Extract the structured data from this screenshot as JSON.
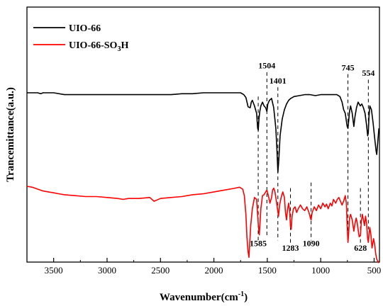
{
  "chart_data": {
    "type": "line",
    "xlabel_main": "Wavenumber(cm",
    "xlabel_sup": "-1",
    "xlabel_end": ")",
    "ylabel": "Trancemittance(a.u.)",
    "x_reversed": true,
    "xlim": [
      3750,
      450
    ],
    "x_ticks": [
      3500,
      3000,
      2500,
      2000,
      1500,
      1000,
      500
    ],
    "y_ticks_shown": false,
    "legend_position": "top-left",
    "series": [
      {
        "name_main": "UIO-66",
        "name_sub": "",
        "name_tail": "",
        "color": "#000000",
        "points": [
          [
            3750,
            0.0
          ],
          [
            3700,
            0.0
          ],
          [
            3650,
            0.0
          ],
          [
            3620,
            0.01
          ],
          [
            3600,
            0.0
          ],
          [
            3500,
            0.0
          ],
          [
            3400,
            0.02
          ],
          [
            3300,
            0.02
          ],
          [
            3200,
            0.02
          ],
          [
            3100,
            0.02
          ],
          [
            3000,
            0.02
          ],
          [
            2900,
            0.02
          ],
          [
            2800,
            0.02
          ],
          [
            2700,
            0.02
          ],
          [
            2600,
            0.02
          ],
          [
            2500,
            0.02
          ],
          [
            2400,
            0.02
          ],
          [
            2300,
            0.01
          ],
          [
            2200,
            0.01
          ],
          [
            2100,
            0.0
          ],
          [
            2000,
            0.0
          ],
          [
            1900,
            0.0
          ],
          [
            1800,
            0.0
          ],
          [
            1750,
            0.0
          ],
          [
            1720,
            0.02
          ],
          [
            1700,
            0.05
          ],
          [
            1680,
            0.15
          ],
          [
            1660,
            0.16
          ],
          [
            1650,
            0.1
          ],
          [
            1640,
            0.08
          ],
          [
            1620,
            0.14
          ],
          [
            1600,
            0.22
          ],
          [
            1590,
            0.38
          ],
          [
            1585,
            0.4
          ],
          [
            1578,
            0.28
          ],
          [
            1570,
            0.2
          ],
          [
            1560,
            0.14
          ],
          [
            1545,
            0.1
          ],
          [
            1530,
            0.14
          ],
          [
            1515,
            0.16
          ],
          [
            1504,
            0.2
          ],
          [
            1495,
            0.12
          ],
          [
            1480,
            0.08
          ],
          [
            1460,
            0.06
          ],
          [
            1440,
            0.16
          ],
          [
            1420,
            0.38
          ],
          [
            1410,
            0.6
          ],
          [
            1401,
            0.85
          ],
          [
            1392,
            0.72
          ],
          [
            1380,
            0.46
          ],
          [
            1360,
            0.28
          ],
          [
            1340,
            0.18
          ],
          [
            1320,
            0.12
          ],
          [
            1300,
            0.08
          ],
          [
            1280,
            0.06
          ],
          [
            1250,
            0.04
          ],
          [
            1200,
            0.03
          ],
          [
            1150,
            0.02
          ],
          [
            1100,
            0.02
          ],
          [
            1050,
            0.03
          ],
          [
            1000,
            0.02
          ],
          [
            950,
            0.02
          ],
          [
            900,
            0.02
          ],
          [
            850,
            0.02
          ],
          [
            820,
            0.04
          ],
          [
            800,
            0.1
          ],
          [
            785,
            0.18
          ],
          [
            770,
            0.22
          ],
          [
            760,
            0.3
          ],
          [
            752,
            0.36
          ],
          [
            745,
            0.38
          ],
          [
            738,
            0.3
          ],
          [
            730,
            0.2
          ],
          [
            720,
            0.14
          ],
          [
            705,
            0.22
          ],
          [
            690,
            0.36
          ],
          [
            680,
            0.26
          ],
          [
            665,
            0.16
          ],
          [
            650,
            0.1
          ],
          [
            630,
            0.14
          ],
          [
            615,
            0.12
          ],
          [
            600,
            0.16
          ],
          [
            585,
            0.22
          ],
          [
            570,
            0.35
          ],
          [
            560,
            0.46
          ],
          [
            554,
            0.42
          ],
          [
            548,
            0.26
          ],
          [
            540,
            0.14
          ],
          [
            525,
            0.18
          ],
          [
            510,
            0.32
          ],
          [
            495,
            0.48
          ],
          [
            482,
            0.62
          ],
          [
            475,
            0.66
          ],
          [
            465,
            0.52
          ],
          [
            455,
            0.38
          ]
        ]
      },
      {
        "name_main": "UIO-66-SO",
        "name_sub": "3",
        "name_tail": "H",
        "color": "#ff0000",
        "points": [
          [
            3750,
            1.0
          ],
          [
            3700,
            1.01
          ],
          [
            3650,
            1.03
          ],
          [
            3600,
            1.05
          ],
          [
            3550,
            1.06
          ],
          [
            3500,
            1.07
          ],
          [
            3450,
            1.08
          ],
          [
            3400,
            1.09
          ],
          [
            3300,
            1.1
          ],
          [
            3200,
            1.11
          ],
          [
            3100,
            1.11
          ],
          [
            3000,
            1.12
          ],
          [
            2900,
            1.13
          ],
          [
            2850,
            1.14
          ],
          [
            2800,
            1.13
          ],
          [
            2700,
            1.13
          ],
          [
            2600,
            1.12
          ],
          [
            2560,
            1.16
          ],
          [
            2540,
            1.15
          ],
          [
            2500,
            1.13
          ],
          [
            2400,
            1.12
          ],
          [
            2300,
            1.11
          ],
          [
            2200,
            1.09
          ],
          [
            2100,
            1.08
          ],
          [
            2000,
            1.06
          ],
          [
            1900,
            1.04
          ],
          [
            1800,
            1.02
          ],
          [
            1760,
            1.01
          ],
          [
            1730,
            1.03
          ],
          [
            1715,
            1.1
          ],
          [
            1700,
            1.3
          ],
          [
            1690,
            1.55
          ],
          [
            1680,
            1.7
          ],
          [
            1672,
            1.76
          ],
          [
            1665,
            1.62
          ],
          [
            1655,
            1.42
          ],
          [
            1640,
            1.24
          ],
          [
            1620,
            1.12
          ],
          [
            1600,
            1.14
          ],
          [
            1585,
            1.4
          ],
          [
            1575,
            1.52
          ],
          [
            1560,
            1.24
          ],
          [
            1545,
            1.1
          ],
          [
            1530,
            1.09
          ],
          [
            1515,
            1.06
          ],
          [
            1504,
            1.04
          ],
          [
            1490,
            1.1
          ],
          [
            1475,
            1.18
          ],
          [
            1460,
            1.12
          ],
          [
            1450,
            1.04
          ],
          [
            1440,
            1.02
          ],
          [
            1430,
            1.05
          ],
          [
            1420,
            1.12
          ],
          [
            1405,
            1.24
          ],
          [
            1395,
            1.32
          ],
          [
            1385,
            1.2
          ],
          [
            1370,
            1.12
          ],
          [
            1355,
            1.06
          ],
          [
            1340,
            1.12
          ],
          [
            1330,
            1.28
          ],
          [
            1320,
            1.36
          ],
          [
            1312,
            1.26
          ],
          [
            1300,
            1.18
          ],
          [
            1290,
            1.28
          ],
          [
            1283,
            1.42
          ],
          [
            1276,
            1.46
          ],
          [
            1268,
            1.32
          ],
          [
            1255,
            1.24
          ],
          [
            1240,
            1.22
          ],
          [
            1225,
            1.28
          ],
          [
            1210,
            1.24
          ],
          [
            1190,
            1.2
          ],
          [
            1170,
            1.24
          ],
          [
            1150,
            1.26
          ],
          [
            1130,
            1.22
          ],
          [
            1110,
            1.28
          ],
          [
            1096,
            1.34
          ],
          [
            1090,
            1.36
          ],
          [
            1080,
            1.28
          ],
          [
            1060,
            1.22
          ],
          [
            1040,
            1.26
          ],
          [
            1020,
            1.2
          ],
          [
            1000,
            1.24
          ],
          [
            980,
            1.18
          ],
          [
            960,
            1.22
          ],
          [
            945,
            1.19
          ],
          [
            930,
            1.24
          ],
          [
            910,
            1.18
          ],
          [
            895,
            1.21
          ],
          [
            880,
            1.14
          ],
          [
            860,
            1.18
          ],
          [
            845,
            1.14
          ],
          [
            830,
            1.12
          ],
          [
            815,
            1.16
          ],
          [
            800,
            1.2
          ],
          [
            785,
            1.16
          ],
          [
            770,
            1.1
          ],
          [
            760,
            1.18
          ],
          [
            752,
            1.42
          ],
          [
            745,
            1.6
          ],
          [
            738,
            1.5
          ],
          [
            730,
            1.34
          ],
          [
            720,
            1.3
          ],
          [
            705,
            1.36
          ],
          [
            690,
            1.48
          ],
          [
            680,
            1.4
          ],
          [
            668,
            1.34
          ],
          [
            660,
            1.38
          ],
          [
            650,
            1.46
          ],
          [
            640,
            1.54
          ],
          [
            628,
            1.52
          ],
          [
            620,
            1.38
          ],
          [
            610,
            1.3
          ],
          [
            600,
            1.36
          ],
          [
            590,
            1.42
          ],
          [
            580,
            1.32
          ],
          [
            570,
            1.4
          ],
          [
            560,
            1.56
          ],
          [
            554,
            1.6
          ],
          [
            548,
            1.52
          ],
          [
            540,
            1.44
          ],
          [
            530,
            1.52
          ],
          [
            520,
            1.66
          ],
          [
            505,
            1.56
          ],
          [
            495,
            1.62
          ],
          [
            485,
            1.72
          ],
          [
            475,
            1.78
          ],
          [
            465,
            1.8
          ],
          [
            455,
            1.82
          ]
        ]
      }
    ],
    "annotations": [
      {
        "label": "1504",
        "x": 1504,
        "line_top": -0.22,
        "line_bottom": 1.54,
        "label_y": -0.26,
        "label_side": "top"
      },
      {
        "label": "1401",
        "x": 1401,
        "line_top": -0.06,
        "line_bottom": 1.58,
        "label_y": -0.1,
        "label_side": "top"
      },
      {
        "label": "745",
        "x": 745,
        "line_top": -0.2,
        "line_bottom": 1.56,
        "label_y": -0.24,
        "label_side": "top"
      },
      {
        "label": "554",
        "x": 554,
        "line_top": -0.14,
        "line_bottom": 1.46,
        "label_y": -0.18,
        "label_side": "top"
      },
      {
        "label": "1585",
        "x": 1585,
        "line_top": 0.04,
        "line_bottom": 1.58,
        "label_y": 1.64,
        "label_side": "bottom"
      },
      {
        "label": "1283",
        "x": 1283,
        "line_top": 1.02,
        "line_bottom": 1.62,
        "label_y": 1.69,
        "label_side": "bottom"
      },
      {
        "label": "1090",
        "x": 1090,
        "line_top": 0.96,
        "line_bottom": 1.58,
        "label_y": 1.64,
        "label_side": "bottom"
      },
      {
        "label": "628",
        "x": 628,
        "line_top": 1.02,
        "line_bottom": 1.62,
        "label_y": 1.69,
        "label_side": "bottom"
      }
    ]
  }
}
